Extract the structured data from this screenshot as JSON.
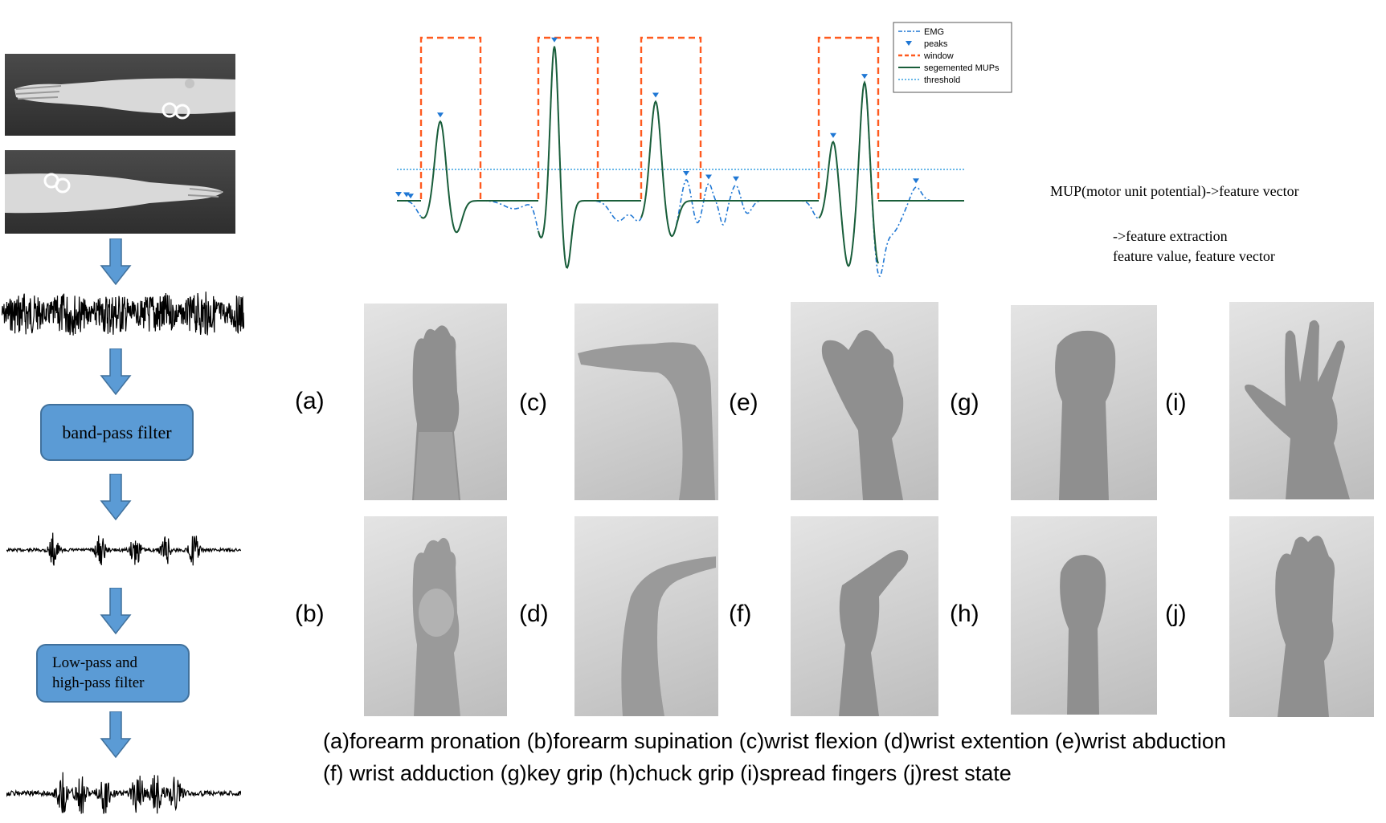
{
  "pipeline": {
    "box1_label": "band-pass filter",
    "box2_line1": "Low-pass and",
    "box2_line2": "high-pass filter"
  },
  "signal_chart": {
    "legend": [
      "EMG",
      "peaks",
      "window",
      "segemented MUPs",
      "threshold"
    ],
    "colors": {
      "emg": "#1f77d4",
      "peaks": "#1f77d4",
      "window": "#ff5a1f",
      "segmented": "#1a5e3a",
      "threshold": "#3aa0e0"
    }
  },
  "notes": {
    "line1": "MUP(motor unit potential)->feature vector",
    "line2": "->feature extraction",
    "line3": "feature value, feature vector"
  },
  "gestures": {
    "labels": [
      "(a)",
      "(b)",
      "(c)",
      "(d)",
      "(e)",
      "(f)",
      "(g)",
      "(h)",
      "(i)",
      "(j)"
    ],
    "caption_line1": "(a)forearm pronation (b)forearm supination (c)wrist flexion (d)wrist extention (e)wrist abduction",
    "caption_line2": "(f) wrist adduction (g)key grip (h)chuck grip (i)spread fingers (j)rest state"
  }
}
